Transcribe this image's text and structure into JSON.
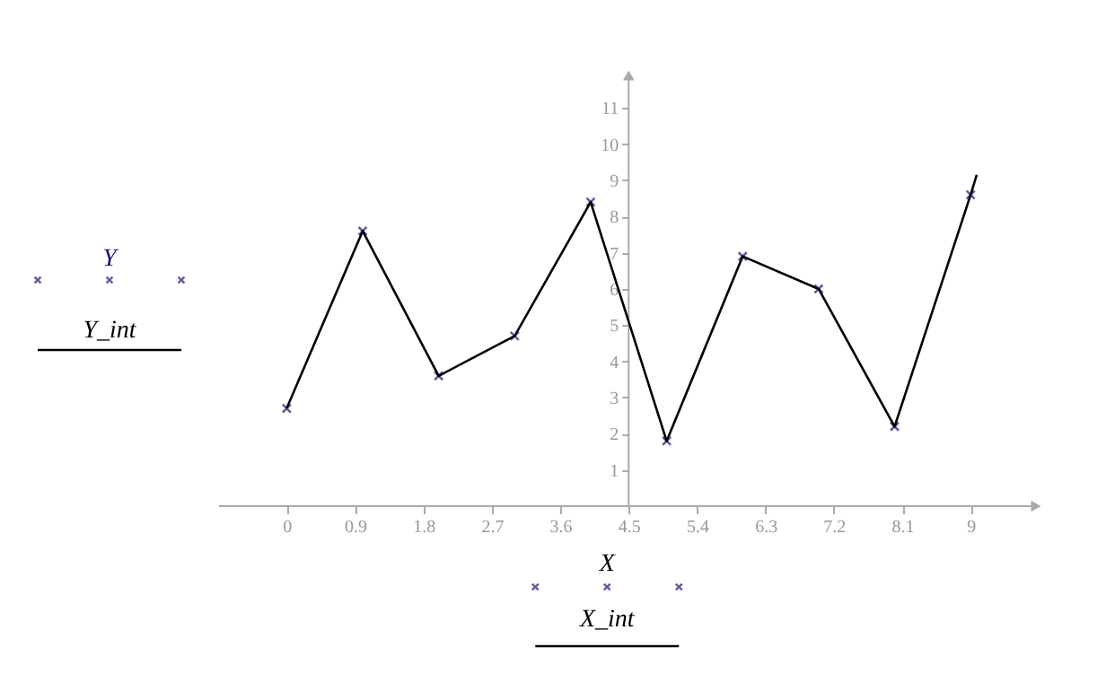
{
  "chart_data": {
    "type": "scatter",
    "xlabel": "X",
    "annotations": [
      "X_int"
    ],
    "legend": "left",
    "xlim": [
      -0.89,
      9.86
    ],
    "ylim": [
      0,
      11.9
    ],
    "xticks": [
      0,
      0.9,
      1.8,
      2.7,
      3.6,
      4.5,
      5.4,
      6.3,
      7.2,
      8.1,
      9
    ],
    "yticks": [
      1,
      2,
      3,
      4,
      5,
      6,
      7,
      8,
      9,
      10,
      11
    ],
    "grid": false,
    "series": [
      {
        "name": "Y",
        "type": "scatter",
        "marker": "cross",
        "color": "#1a1a80",
        "x": [
          0,
          1,
          2,
          3,
          4,
          5,
          6,
          7,
          8,
          9
        ],
        "values": [
          2.7,
          7.6,
          3.6,
          4.7,
          8.4,
          1.8,
          6.9,
          6.0,
          2.2,
          8.6
        ]
      },
      {
        "name": "Y_int",
        "type": "line",
        "marker": "none",
        "line_style": "solid",
        "color": "#000000",
        "x": [
          0,
          1,
          2,
          3,
          4,
          5,
          6,
          7,
          8,
          9,
          9.08
        ],
        "values": [
          2.7,
          7.6,
          3.6,
          4.7,
          8.4,
          1.8,
          6.9,
          6.0,
          2.2,
          8.6,
          9.15
        ]
      }
    ]
  }
}
